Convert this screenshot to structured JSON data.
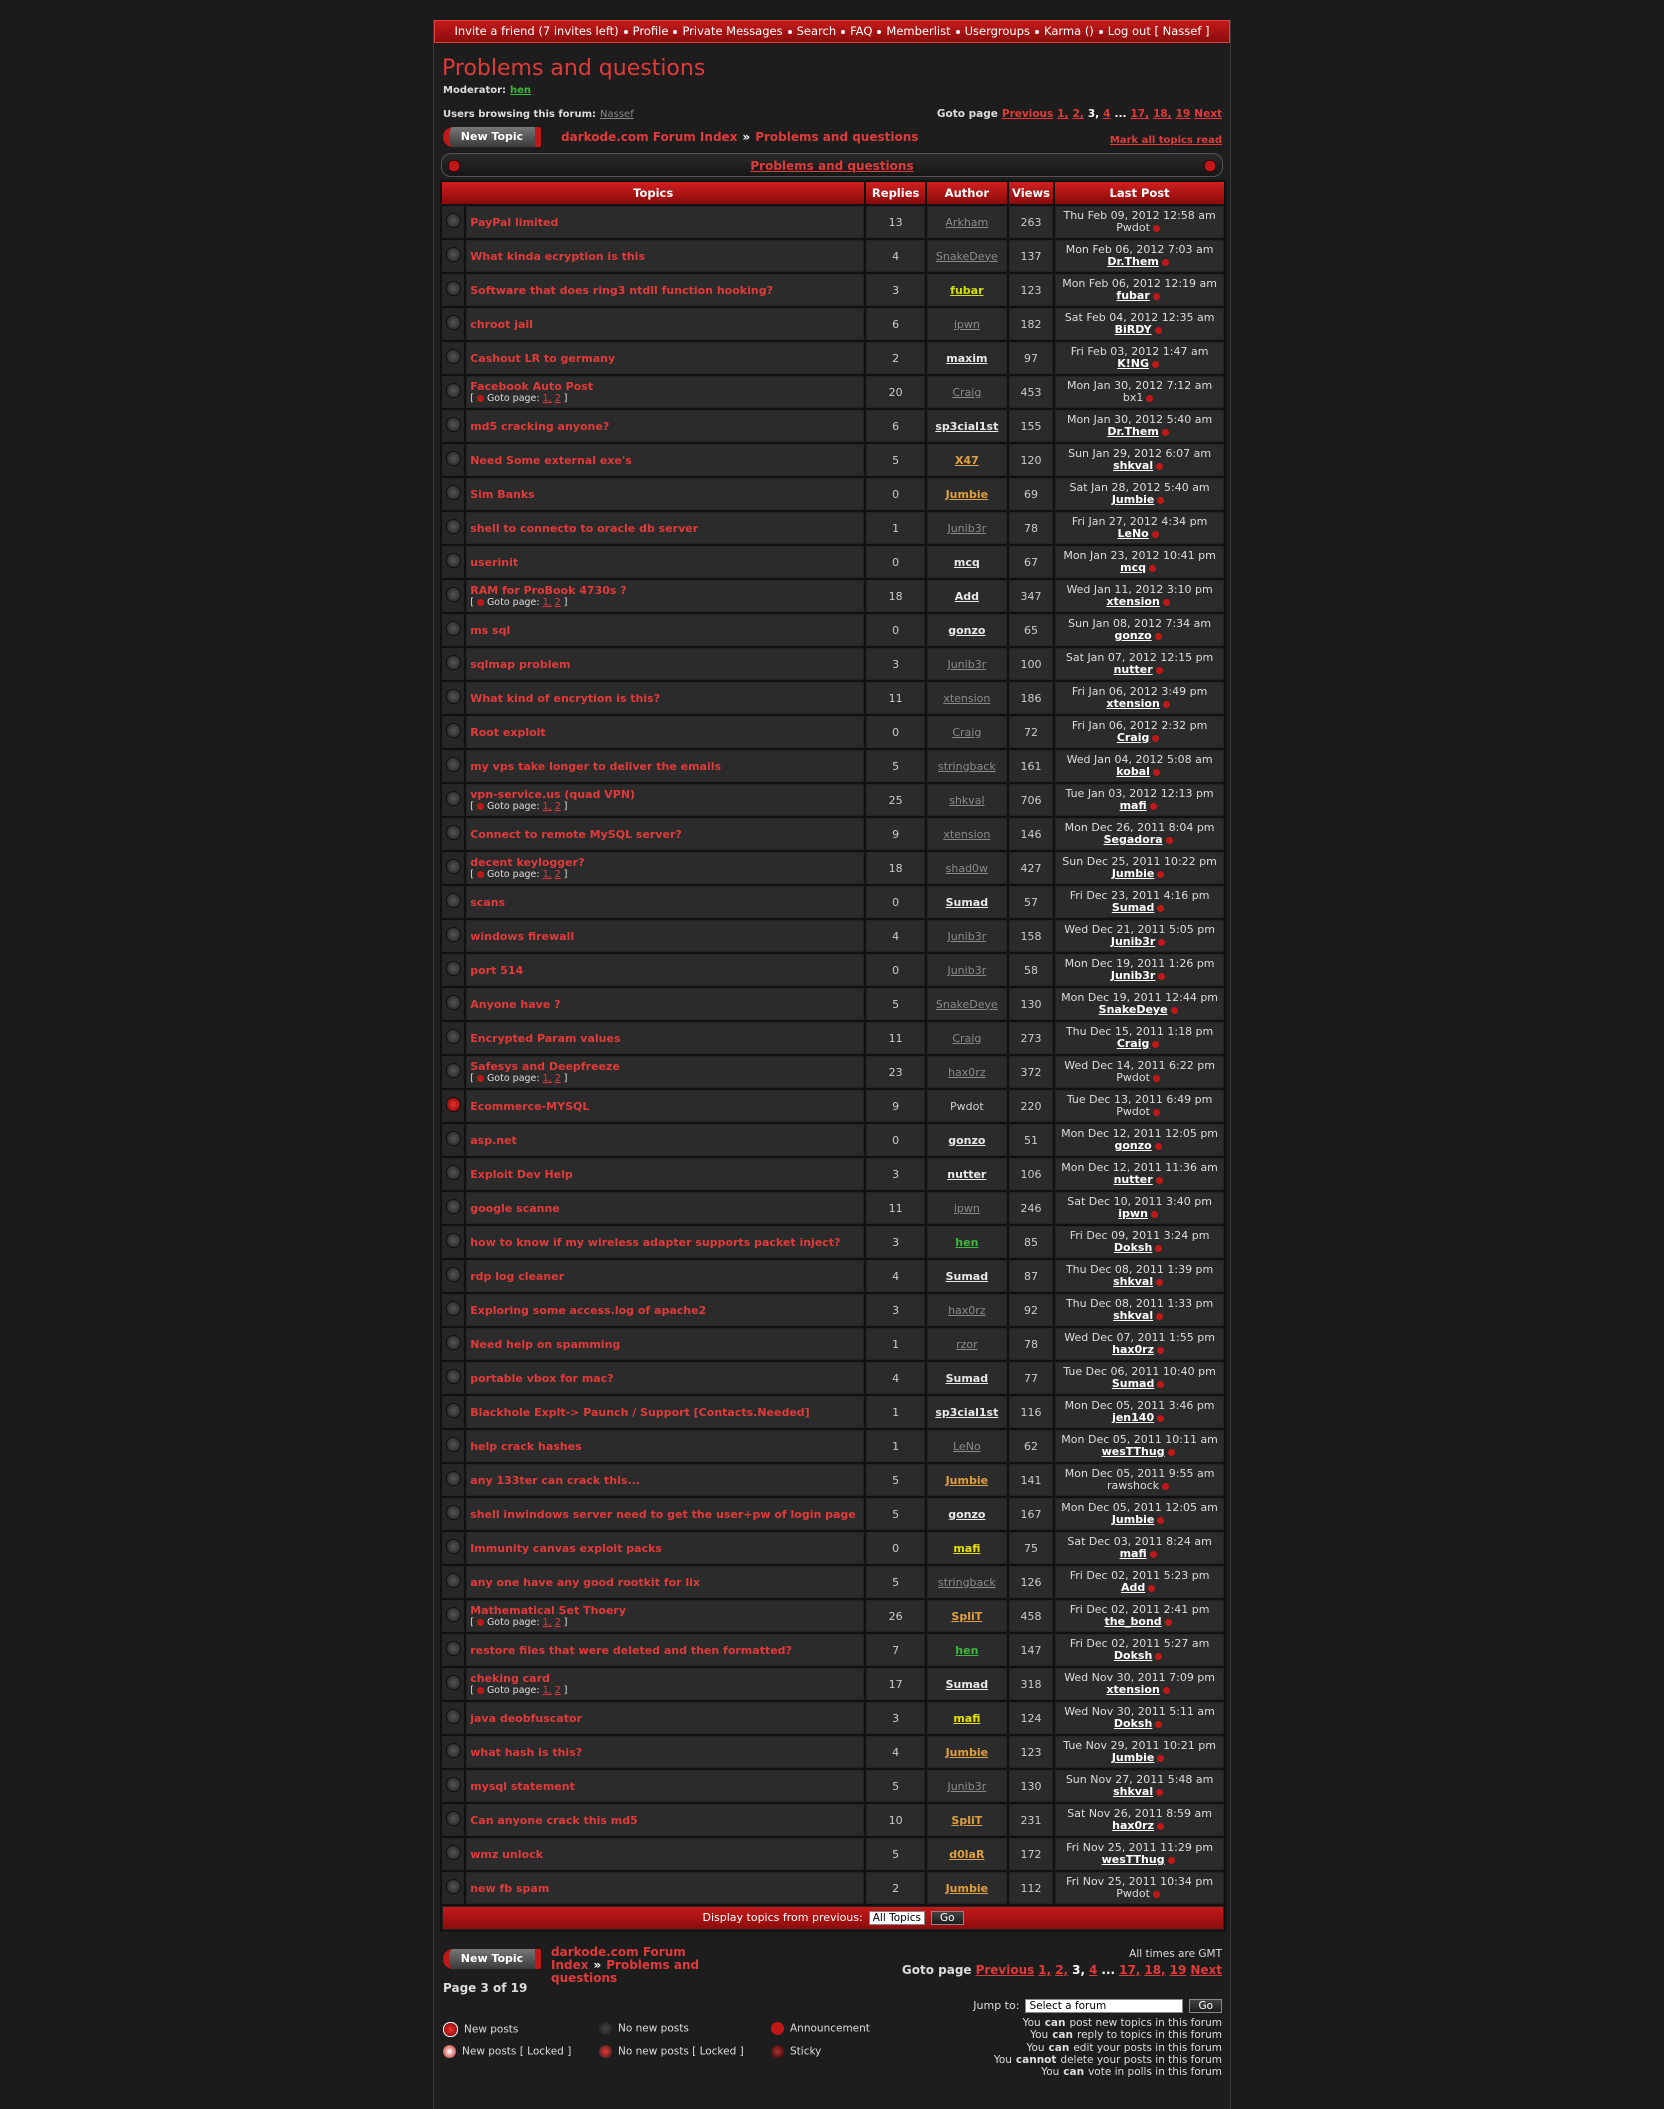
{
  "nav": {
    "items": [
      "Invite a friend (7 invites left)",
      "Profile",
      "Private Messages",
      "Search",
      "FAQ",
      "Memberlist",
      "Usergroups",
      "Karma ()",
      "Log out [ Nassef ]"
    ]
  },
  "header": {
    "title": "Problems and questions",
    "moderator_label": "Moderator:",
    "moderator": "hen",
    "browsing_label": "Users browsing this forum:",
    "browsing_user": "Nassef"
  },
  "pagination": {
    "label": "Goto page",
    "tokens": [
      {
        "label": "Previous",
        "link": true
      },
      {
        "label": "1,",
        "link": true
      },
      {
        "label": "2,",
        "link": true
      },
      {
        "label": "3,",
        "link": false
      },
      {
        "label": "4",
        "link": true
      },
      {
        "label": "...",
        "link": false
      },
      {
        "label": "17,",
        "link": true
      },
      {
        "label": "18,",
        "link": true
      },
      {
        "label": "19",
        "link": true
      },
      {
        "label": "Next",
        "link": true
      }
    ]
  },
  "new_topic": "New Topic",
  "breadcrumb": {
    "items": [
      "darkode.com Forum Index",
      "Problems and questions"
    ],
    "separator": "»"
  },
  "mark_read": "Mark all topics read",
  "topics": {
    "bar_title": "Problems and questions",
    "columns": [
      "Topics",
      "Replies",
      "Author",
      "Views",
      "Last Post"
    ],
    "goto_label": "Goto page:",
    "goto_brackets": [
      "[",
      "]"
    ],
    "rows": [
      {
        "title": "PayPal limited",
        "replies": 13,
        "author": "Arkham",
        "author_color": "#8a8a8a",
        "views": 263,
        "last_post": "Thu Feb 09, 2012 12:58 am",
        "last_poster": "Pwdot",
        "last_poster_guest": true
      },
      {
        "title": "What kinda ecryption is this",
        "replies": 4,
        "author": "SnakeDeye",
        "author_color": "#8a8a8a",
        "views": 137,
        "last_post": "Mon Feb 06, 2012 7:03 am",
        "last_poster": "Dr.Them"
      },
      {
        "title": "Software that does ring3 ntdll function hooking?",
        "replies": 3,
        "author": "fubar",
        "author_color": "#d4e000",
        "views": 123,
        "last_post": "Mon Feb 06, 2012 12:19 am",
        "last_poster": "fubar"
      },
      {
        "title": "chroot jail",
        "replies": 6,
        "author": "ipwn",
        "author_color": "#8a8a8a",
        "views": 182,
        "last_post": "Sat Feb 04, 2012 12:35 am",
        "last_poster": "BiRDY"
      },
      {
        "title": "Cashout LR to germany",
        "replies": 2,
        "author": "maxim",
        "author_color": "#e8e8e8",
        "views": 97,
        "last_post": "Fri Feb 03, 2012 1:47 am",
        "last_poster": "K!NG"
      },
      {
        "title": "Facebook Auto Post",
        "goto": [
          "1,",
          "2"
        ],
        "replies": 20,
        "author": "Craig",
        "author_color": "#8a8a8a",
        "views": 453,
        "last_post": "Mon Jan 30, 2012 7:12 am",
        "last_poster": "bx1",
        "last_poster_guest": true
      },
      {
        "title": "md5 cracking anyone?",
        "replies": 6,
        "author": "sp3cial1st",
        "author_color": "#e8e8e8",
        "views": 155,
        "last_post": "Mon Jan 30, 2012 5:40 am",
        "last_poster": "Dr.Them"
      },
      {
        "title": "Need Some external exe's",
        "replies": 5,
        "author": "X47",
        "author_color": "#e0a040",
        "views": 120,
        "last_post": "Sun Jan 29, 2012 6:07 am",
        "last_poster": "shkval"
      },
      {
        "title": "Sim Banks",
        "replies": 0,
        "author": "Jumbie",
        "author_color": "#e0a040",
        "views": 69,
        "last_post": "Sat Jan 28, 2012 5:40 am",
        "last_poster": "Jumbie"
      },
      {
        "title": "shell to connecto to oracle db server",
        "replies": 1,
        "author": "Junib3r",
        "author_color": "#8a8a8a",
        "views": 78,
        "last_post": "Fri Jan 27, 2012 4:34 pm",
        "last_poster": "LeNo"
      },
      {
        "title": "userinit",
        "replies": 0,
        "author": "mcq",
        "author_color": "#e8e8e8",
        "views": 67,
        "last_post": "Mon Jan 23, 2012 10:41 pm",
        "last_poster": "mcq"
      },
      {
        "title": "RAM for ProBook 4730s ?",
        "goto": [
          "1,",
          "2"
        ],
        "replies": 18,
        "author": "Add",
        "author_color": "#e8e8e8",
        "views": 347,
        "last_post": "Wed Jan 11, 2012 3:10 pm",
        "last_poster": "xtension"
      },
      {
        "title": "ms sql",
        "replies": 0,
        "author": "gonzo",
        "author_color": "#e8e8e8",
        "views": 65,
        "last_post": "Sun Jan 08, 2012 7:34 am",
        "last_poster": "gonzo"
      },
      {
        "title": "sqlmap problem",
        "replies": 3,
        "author": "Junib3r",
        "author_color": "#8a8a8a",
        "views": 100,
        "last_post": "Sat Jan 07, 2012 12:15 pm",
        "last_poster": "nutter"
      },
      {
        "title": "What kind of encrytion is this?",
        "replies": 11,
        "author": "xtension",
        "author_color": "#8a8a8a",
        "views": 186,
        "last_post": "Fri Jan 06, 2012 3:49 pm",
        "last_poster": "xtension"
      },
      {
        "title": "Root exploit",
        "replies": 0,
        "author": "Craig",
        "author_color": "#8a8a8a",
        "views": 72,
        "last_post": "Fri Jan 06, 2012 2:32 pm",
        "last_poster": "Craig"
      },
      {
        "title": "my vps take longer to deliver the emails",
        "replies": 5,
        "author": "stringback",
        "author_color": "#8a8a8a",
        "views": 161,
        "last_post": "Wed Jan 04, 2012 5:08 am",
        "last_poster": "kobal"
      },
      {
        "title": "vpn-service.us (quad VPN)",
        "goto": [
          "1,",
          "2"
        ],
        "replies": 25,
        "author": "shkval",
        "author_color": "#8a8a8a",
        "views": 706,
        "last_post": "Tue Jan 03, 2012 12:13 pm",
        "last_poster": "mafi"
      },
      {
        "title": "Connect to remote MySQL server?",
        "replies": 9,
        "author": "xtension",
        "author_color": "#8a8a8a",
        "views": 146,
        "last_post": "Mon Dec 26, 2011 8:04 pm",
        "last_poster": "Segadora"
      },
      {
        "title": "decent keylogger?",
        "goto": [
          "1,",
          "2"
        ],
        "replies": 18,
        "author": "shad0w",
        "author_color": "#8a8a8a",
        "views": 427,
        "last_post": "Sun Dec 25, 2011 10:22 pm",
        "last_poster": "Jumbie"
      },
      {
        "title": "scans",
        "replies": 0,
        "author": "Sumad",
        "author_color": "#e8e8e8",
        "views": 57,
        "last_post": "Fri Dec 23, 2011 4:16 pm",
        "last_poster": "Sumad"
      },
      {
        "title": "windows firewall",
        "replies": 4,
        "author": "Junib3r",
        "author_color": "#8a8a8a",
        "views": 158,
        "last_post": "Wed Dec 21, 2011 5:05 pm",
        "last_poster": "Junib3r"
      },
      {
        "title": "port 514",
        "replies": 0,
        "author": "Junib3r",
        "author_color": "#8a8a8a",
        "views": 58,
        "last_post": "Mon Dec 19, 2011 1:26 pm",
        "last_poster": "Junib3r"
      },
      {
        "title": "Anyone have ?",
        "replies": 5,
        "author": "SnakeDeye",
        "author_color": "#8a8a8a",
        "views": 130,
        "last_post": "Mon Dec 19, 2011 12:44 pm",
        "last_poster": "SnakeDeye"
      },
      {
        "title": "Encrypted Param values",
        "replies": 11,
        "author": "Craig",
        "author_color": "#8a8a8a",
        "views": 273,
        "last_post": "Thu Dec 15, 2011 1:18 pm",
        "last_poster": "Craig"
      },
      {
        "title": "Safesys and Deepfreeze",
        "goto": [
          "1,",
          "2"
        ],
        "replies": 23,
        "author": "hax0rz",
        "author_color": "#8a8a8a",
        "views": 372,
        "last_post": "Wed Dec 14, 2011 6:22 pm",
        "last_poster": "Pwdot",
        "last_poster_guest": true
      },
      {
        "title": "Ecommerce-MYSQL",
        "locked": true,
        "replies": 9,
        "author": "Pwdot",
        "author_color": "#d0d0d0",
        "author_guest": true,
        "views": 220,
        "last_post": "Tue Dec 13, 2011 6:49 pm",
        "last_poster": "Pwdot",
        "last_poster_guest": true
      },
      {
        "title": "asp.net",
        "replies": 0,
        "author": "gonzo",
        "author_color": "#e8e8e8",
        "views": 51,
        "last_post": "Mon Dec 12, 2011 12:05 pm",
        "last_poster": "gonzo"
      },
      {
        "title": "Exploit Dev Help",
        "replies": 3,
        "author": "nutter",
        "author_color": "#e8e8e8",
        "views": 106,
        "last_post": "Mon Dec 12, 2011 11:36 am",
        "last_poster": "nutter"
      },
      {
        "title": "google scanne",
        "replies": 11,
        "author": "ipwn",
        "author_color": "#8a8a8a",
        "views": 246,
        "last_post": "Sat Dec 10, 2011 3:40 pm",
        "last_poster": "ipwn"
      },
      {
        "title": "how to know if my wireless adapter supports packet inject?",
        "replies": 3,
        "author": "hen",
        "author_color": "#3cb83c",
        "views": 85,
        "last_post": "Fri Dec 09, 2011 3:24 pm",
        "last_poster": "Doksh"
      },
      {
        "title": "rdp log cleaner",
        "replies": 4,
        "author": "Sumad",
        "author_color": "#e8e8e8",
        "views": 87,
        "last_post": "Thu Dec 08, 2011 1:39 pm",
        "last_poster": "shkval"
      },
      {
        "title": "Exploring some access.log of apache2",
        "replies": 3,
        "author": "hax0rz",
        "author_color": "#8a8a8a",
        "views": 92,
        "last_post": "Thu Dec 08, 2011 1:33 pm",
        "last_poster": "shkval"
      },
      {
        "title": "Need help on spamming",
        "replies": 1,
        "author": "rzor",
        "author_color": "#8a8a8a",
        "views": 78,
        "last_post": "Wed Dec 07, 2011 1:55 pm",
        "last_poster": "hax0rz"
      },
      {
        "title": "portable vbox for mac?",
        "replies": 4,
        "author": "Sumad",
        "author_color": "#e8e8e8",
        "views": 77,
        "last_post": "Tue Dec 06, 2011 10:40 pm",
        "last_poster": "Sumad"
      },
      {
        "title": "Blackhole Explt-> Paunch / Support [Contacts.Needed]",
        "replies": 1,
        "author": "sp3cial1st",
        "author_color": "#e8e8e8",
        "views": 116,
        "last_post": "Mon Dec 05, 2011 3:46 pm",
        "last_poster": "jen140"
      },
      {
        "title": "help crack hashes",
        "replies": 1,
        "author": "LeNo",
        "author_color": "#8a8a8a",
        "views": 62,
        "last_post": "Mon Dec 05, 2011 10:11 am",
        "last_poster": "wesTThug"
      },
      {
        "title": "any 133ter can crack this...",
        "replies": 5,
        "author": "Jumbie",
        "author_color": "#e0a040",
        "views": 141,
        "last_post": "Mon Dec 05, 2011 9:55 am",
        "last_poster": "rawshock",
        "last_poster_guest": true
      },
      {
        "title": "shell inwindows server need to get the user+pw of login page",
        "replies": 5,
        "author": "gonzo",
        "author_color": "#e8e8e8",
        "views": 167,
        "last_post": "Mon Dec 05, 2011 12:05 am",
        "last_poster": "Jumbie"
      },
      {
        "title": "Immunity canvas exploit packs",
        "replies": 0,
        "author": "mafi",
        "author_color": "#e8e000",
        "views": 75,
        "last_post": "Sat Dec 03, 2011 8:24 am",
        "last_poster": "mafi"
      },
      {
        "title": "any one have any good rootkit for lix",
        "replies": 5,
        "author": "stringback",
        "author_color": "#8a8a8a",
        "views": 126,
        "last_post": "Fri Dec 02, 2011 5:23 pm",
        "last_poster": "Add"
      },
      {
        "title": "Mathematical Set Thoery",
        "goto": [
          "1,",
          "2"
        ],
        "replies": 26,
        "author": "SpliT",
        "author_color": "#e0a040",
        "views": 458,
        "last_post": "Fri Dec 02, 2011 2:41 pm",
        "last_poster": "the_bond"
      },
      {
        "title": "restore files that were deleted and then formatted?",
        "replies": 7,
        "author": "hen",
        "author_color": "#3cb83c",
        "views": 147,
        "last_post": "Fri Dec 02, 2011 5:27 am",
        "last_poster": "Doksh"
      },
      {
        "title": "cheking card",
        "goto": [
          "1,",
          "2"
        ],
        "replies": 17,
        "author": "Sumad",
        "author_color": "#e8e8e8",
        "views": 318,
        "last_post": "Wed Nov 30, 2011 7:09 pm",
        "last_poster": "xtension"
      },
      {
        "title": "java deobfuscator",
        "replies": 3,
        "author": "mafi",
        "author_color": "#e8e000",
        "views": 124,
        "last_post": "Wed Nov 30, 2011 5:11 am",
        "last_poster": "Doksh"
      },
      {
        "title": "what hash is this?",
        "replies": 4,
        "author": "Jumbie",
        "author_color": "#e0a040",
        "views": 123,
        "last_post": "Tue Nov 29, 2011 10:21 pm",
        "last_poster": "Jumbie"
      },
      {
        "title": "mysql statement",
        "replies": 5,
        "author": "Junib3r",
        "author_color": "#8a8a8a",
        "views": 130,
        "last_post": "Sun Nov 27, 2011 5:48 am",
        "last_poster": "shkval"
      },
      {
        "title": "Can anyone crack this md5",
        "replies": 10,
        "author": "SpliT",
        "author_color": "#e0a040",
        "views": 231,
        "last_post": "Sat Nov 26, 2011 8:59 am",
        "last_poster": "hax0rz"
      },
      {
        "title": "wmz unlock",
        "replies": 5,
        "author": "d0laR",
        "author_color": "#e0a040",
        "views": 172,
        "last_post": "Fri Nov 25, 2011 11:29 pm",
        "last_poster": "wesTThug"
      },
      {
        "title": "new fb spam",
        "replies": 2,
        "author": "Jumbie",
        "author_color": "#e0a040",
        "views": 112,
        "last_post": "Fri Nov 25, 2011 10:34 pm",
        "last_poster": "Pwdot",
        "last_poster_guest": true
      }
    ],
    "footer": {
      "label": "Display topics from previous:",
      "select": "All Topics",
      "button": "Go"
    }
  },
  "bottom": {
    "timezone": "All times are GMT",
    "page_info": "Page 3 of 19",
    "legend": [
      "New posts",
      "No new posts",
      "Announcement",
      "New posts [ Locked ]",
      "No new posts [ Locked ]",
      "Sticky"
    ],
    "jump_label": "Jump to:",
    "jump_select": "Select a forum",
    "jump_button": "Go",
    "permissions": [
      {
        "pre": "You",
        "verb": "can",
        "post": "post new topics in this forum"
      },
      {
        "pre": "You",
        "verb": "can",
        "post": "reply to topics in this forum"
      },
      {
        "pre": "You",
        "verb": "can",
        "post": "edit your posts in this forum"
      },
      {
        "pre": "You",
        "verb": "cannot",
        "post": "delete your posts in this forum"
      },
      {
        "pre": "You",
        "verb": "can",
        "post": "vote in polls in this forum"
      }
    ]
  }
}
